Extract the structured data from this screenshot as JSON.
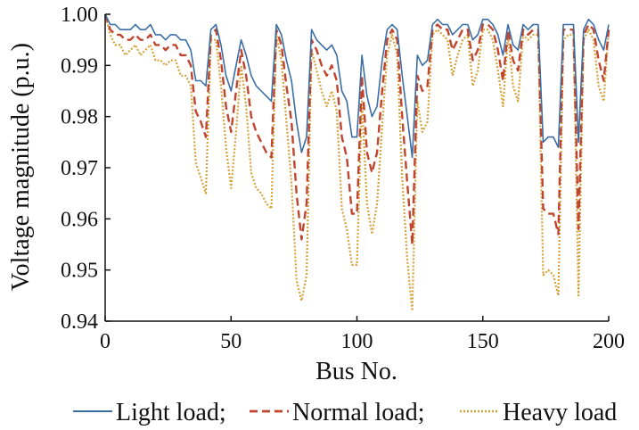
{
  "chart_data": {
    "type": "line",
    "title": "",
    "xlabel": "Bus No.",
    "ylabel": "Voltage magnitude (p.u.)",
    "xlim": [
      0,
      200
    ],
    "ylim": [
      0.94,
      1.0
    ],
    "xticks": [
      "0",
      "50",
      "100",
      "150",
      "200"
    ],
    "yticks": [
      "0.94",
      "0.95",
      "0.96",
      "0.97",
      "0.98",
      "0.99",
      "1.00"
    ],
    "grid": false,
    "legend_position": "bottom",
    "x": [
      0,
      2,
      4,
      6,
      8,
      10,
      12,
      14,
      16,
      18,
      20,
      22,
      24,
      26,
      28,
      30,
      32,
      34,
      36,
      38,
      40,
      42,
      44,
      46,
      48,
      50,
      52,
      54,
      56,
      58,
      60,
      62,
      64,
      66,
      68,
      70,
      72,
      74,
      76,
      78,
      80,
      82,
      84,
      86,
      88,
      90,
      92,
      94,
      96,
      98,
      100,
      102,
      104,
      106,
      108,
      110,
      112,
      114,
      116,
      118,
      120,
      122,
      124,
      126,
      128,
      130,
      132,
      134,
      136,
      138,
      140,
      142,
      144,
      146,
      148,
      150,
      152,
      154,
      156,
      158,
      160,
      162,
      164,
      166,
      168,
      170,
      172,
      174,
      176,
      178,
      180,
      182,
      184,
      186,
      188,
      190,
      192,
      194,
      196,
      198,
      200
    ],
    "series": [
      {
        "name": "Light load",
        "color": "#3a6ea5",
        "dash": "solid",
        "values": [
          1.0,
          0.998,
          0.998,
          0.997,
          0.997,
          0.997,
          0.998,
          0.997,
          0.997,
          0.998,
          0.996,
          0.996,
          0.995,
          0.996,
          0.996,
          0.995,
          0.995,
          0.993,
          0.987,
          0.987,
          0.986,
          0.997,
          0.998,
          0.994,
          0.988,
          0.985,
          0.99,
          0.995,
          0.992,
          0.988,
          0.986,
          0.985,
          0.984,
          0.983,
          0.998,
          0.996,
          0.991,
          0.987,
          0.979,
          0.973,
          0.976,
          0.997,
          0.995,
          0.994,
          0.993,
          0.994,
          0.992,
          0.985,
          0.983,
          0.976,
          0.976,
          0.992,
          0.984,
          0.98,
          0.982,
          0.991,
          0.997,
          0.998,
          0.997,
          0.988,
          0.98,
          0.972,
          0.992,
          0.99,
          0.991,
          0.998,
          0.999,
          0.998,
          0.998,
          0.996,
          0.997,
          0.998,
          0.998,
          0.995,
          0.996,
          0.999,
          0.999,
          0.998,
          0.996,
          0.992,
          0.998,
          0.994,
          0.993,
          0.998,
          0.997,
          0.998,
          0.998,
          0.975,
          0.976,
          0.976,
          0.974,
          0.998,
          0.998,
          0.998,
          0.975,
          0.997,
          0.999,
          0.998,
          0.995,
          0.993,
          0.998
        ]
      },
      {
        "name": "Normal load",
        "color": "#c0442e",
        "dash": "dashed",
        "values": [
          1.0,
          0.997,
          0.996,
          0.996,
          0.995,
          0.995,
          0.996,
          0.995,
          0.995,
          0.996,
          0.994,
          0.994,
          0.993,
          0.994,
          0.994,
          0.992,
          0.992,
          0.99,
          0.981,
          0.979,
          0.976,
          0.996,
          0.997,
          0.991,
          0.982,
          0.977,
          0.985,
          0.993,
          0.988,
          0.98,
          0.977,
          0.975,
          0.973,
          0.972,
          0.997,
          0.994,
          0.986,
          0.979,
          0.965,
          0.956,
          0.963,
          0.995,
          0.993,
          0.99,
          0.988,
          0.99,
          0.987,
          0.976,
          0.972,
          0.961,
          0.961,
          0.988,
          0.973,
          0.969,
          0.973,
          0.985,
          0.995,
          0.997,
          0.995,
          0.98,
          0.967,
          0.955,
          0.988,
          0.985,
          0.986,
          0.997,
          0.998,
          0.997,
          0.997,
          0.993,
          0.995,
          0.997,
          0.997,
          0.991,
          0.993,
          0.998,
          0.998,
          0.997,
          0.993,
          0.987,
          0.997,
          0.991,
          0.989,
          0.997,
          0.996,
          0.997,
          0.997,
          0.962,
          0.961,
          0.961,
          0.957,
          0.997,
          0.997,
          0.997,
          0.958,
          0.996,
          0.998,
          0.997,
          0.991,
          0.987,
          0.997
        ]
      },
      {
        "name": "Heavy load",
        "color": "#d6a23c",
        "dash": "dotted",
        "values": [
          1.0,
          0.996,
          0.994,
          0.994,
          0.992,
          0.993,
          0.994,
          0.992,
          0.993,
          0.994,
          0.991,
          0.991,
          0.99,
          0.991,
          0.991,
          0.988,
          0.988,
          0.986,
          0.971,
          0.968,
          0.965,
          0.995,
          0.995,
          0.986,
          0.974,
          0.966,
          0.977,
          0.99,
          0.982,
          0.969,
          0.966,
          0.965,
          0.963,
          0.962,
          0.996,
          0.991,
          0.979,
          0.967,
          0.948,
          0.944,
          0.949,
          0.993,
          0.989,
          0.985,
          0.982,
          0.985,
          0.981,
          0.962,
          0.958,
          0.951,
          0.951,
          0.983,
          0.963,
          0.957,
          0.963,
          0.978,
          0.992,
          0.996,
          0.992,
          0.968,
          0.952,
          0.942,
          0.983,
          0.977,
          0.979,
          0.996,
          0.997,
          0.996,
          0.995,
          0.988,
          0.992,
          0.995,
          0.996,
          0.986,
          0.989,
          0.997,
          0.997,
          0.995,
          0.989,
          0.982,
          0.996,
          0.986,
          0.983,
          0.996,
          0.995,
          0.996,
          0.996,
          0.949,
          0.95,
          0.949,
          0.945,
          0.995,
          0.996,
          0.996,
          0.945,
          0.995,
          0.997,
          0.995,
          0.986,
          0.983,
          0.997
        ]
      }
    ]
  },
  "legend": {
    "items": [
      {
        "label": "Light load;"
      },
      {
        "label": "Normal load;"
      },
      {
        "label": "Heavy load"
      }
    ]
  }
}
